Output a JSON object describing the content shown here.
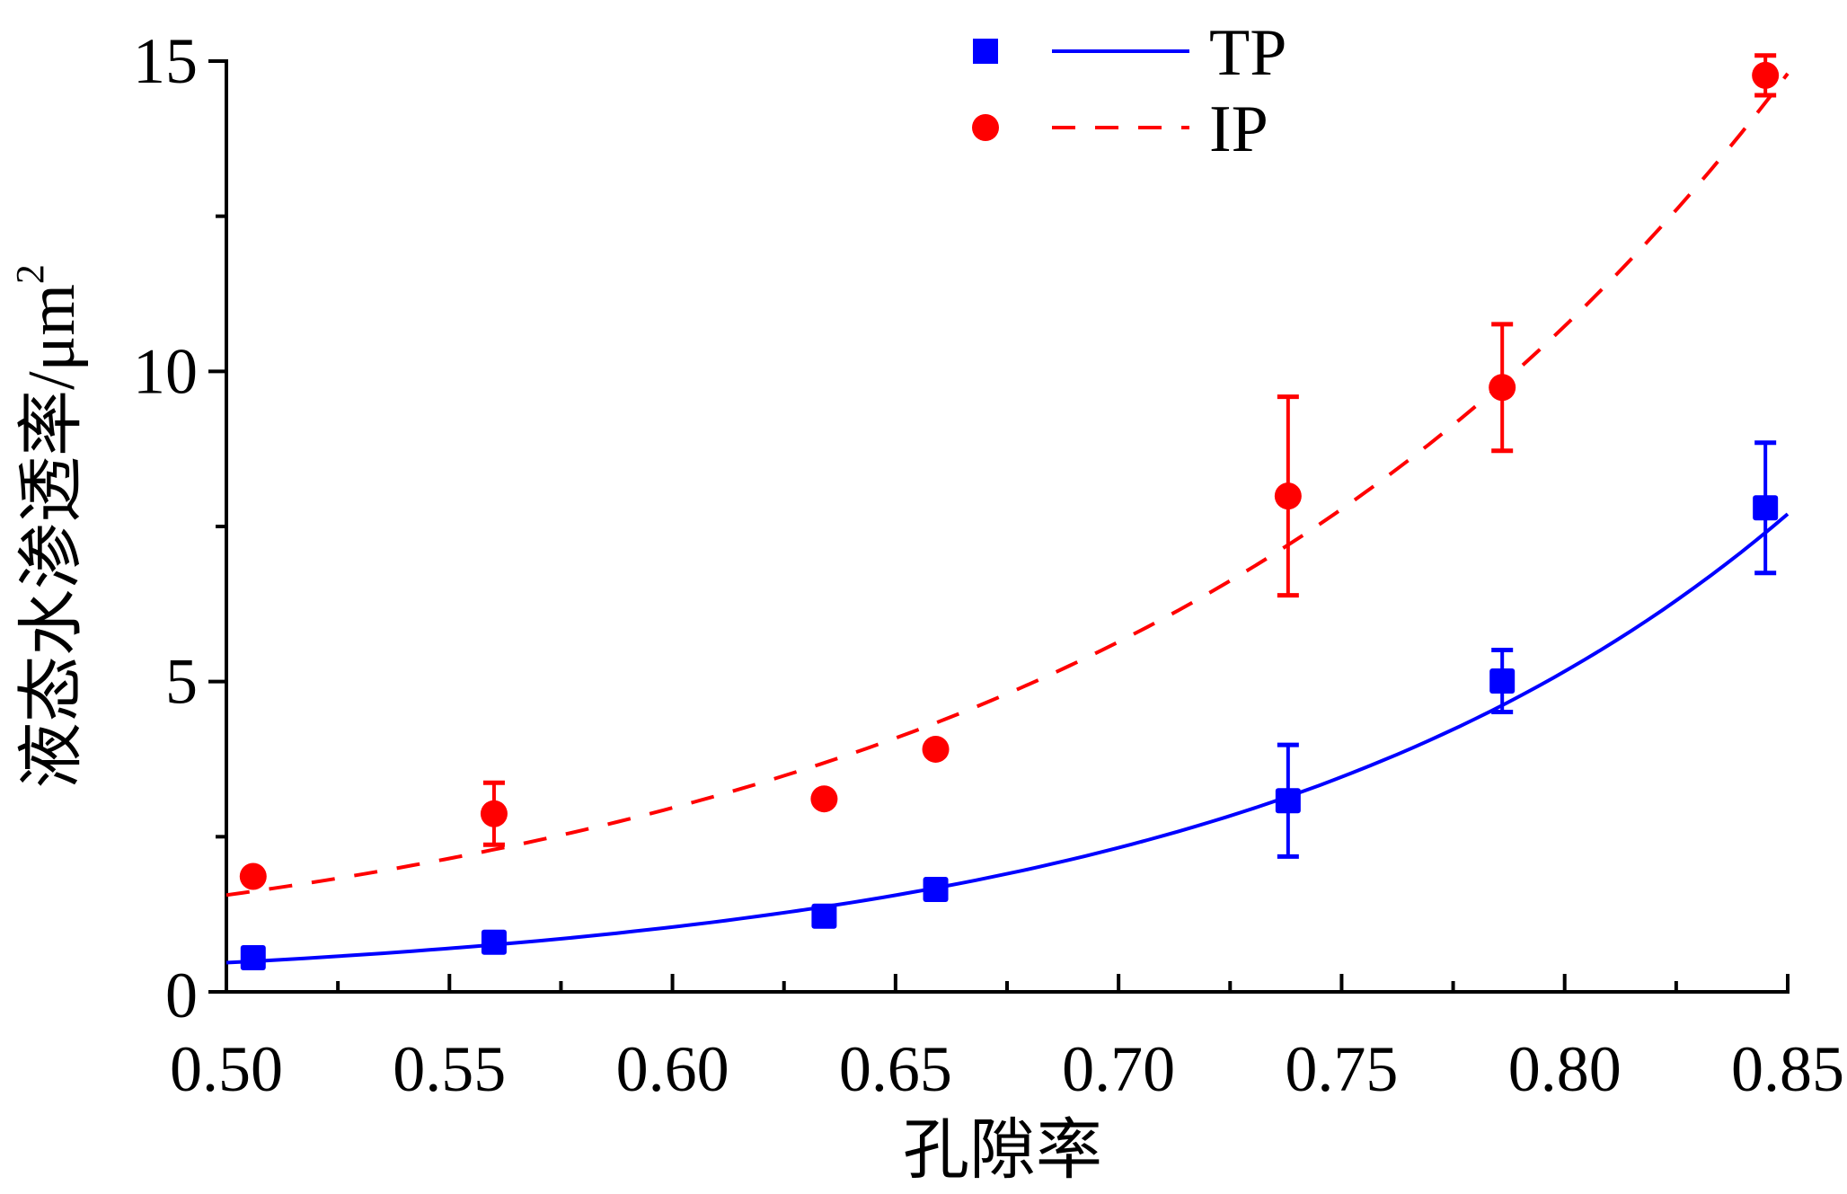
{
  "chart_data": {
    "type": "scatter",
    "title": "",
    "xlabel": "孔隙率",
    "ylabel": "液态水渗透率/μm",
    "ylabel_superscript": "2",
    "xlim": [
      0.5,
      0.85
    ],
    "ylim": [
      0,
      15
    ],
    "xticks": [
      "0.50",
      "0.55",
      "0.60",
      "0.65",
      "0.70",
      "0.75",
      "0.80",
      "0.85"
    ],
    "yticks": [
      "0",
      "5",
      "10",
      "15"
    ],
    "grid": false,
    "legend_position": "top-center",
    "series": [
      {
        "name": "TP",
        "color": "#0000ff",
        "marker": "square",
        "fit_style": "solid",
        "x": [
          0.506,
          0.56,
          0.634,
          0.659,
          0.738,
          0.786,
          0.845
        ],
        "y": [
          0.55,
          0.8,
          1.22,
          1.65,
          3.08,
          5.01,
          7.8
        ],
        "error": [
          0,
          0,
          0,
          0,
          0.9,
          0.5,
          1.05
        ],
        "fit": {
          "model": "exponential",
          "a": 0.00865,
          "b": 7.99
        }
      },
      {
        "name": "IP",
        "color": "#ff0000",
        "marker": "circle",
        "fit_style": "dashed",
        "x": [
          0.506,
          0.56,
          0.634,
          0.659,
          0.738,
          0.786,
          0.845
        ],
        "y": [
          1.86,
          2.87,
          3.11,
          3.91,
          7.99,
          9.74,
          14.77
        ],
        "error": [
          0,
          0.5,
          0,
          0,
          1.6,
          1.02,
          0.32
        ],
        "fit": {
          "model": "exponential",
          "a": 0.0626,
          "b": 6.43
        }
      }
    ]
  }
}
